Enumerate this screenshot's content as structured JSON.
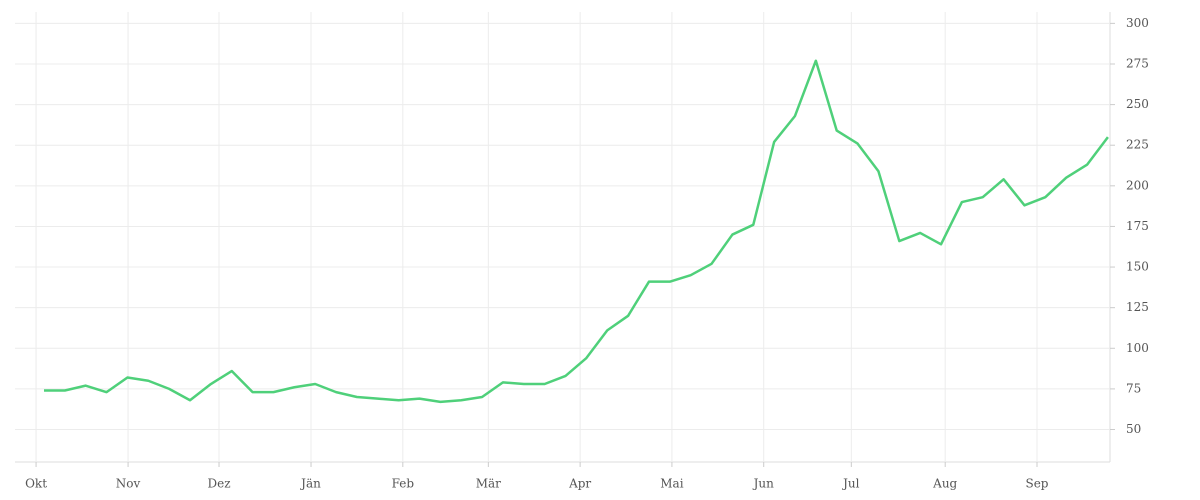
{
  "chart_data": {
    "type": "line",
    "series": [
      {
        "color": "#4fd07a",
        "values": [
          74,
          74,
          77,
          73,
          82,
          80,
          75,
          68,
          78,
          86,
          73,
          73,
          76,
          78,
          73,
          70,
          69,
          68,
          69,
          67,
          68,
          70,
          79,
          78,
          78,
          83,
          94,
          111,
          120,
          141,
          141,
          145,
          152,
          170,
          176,
          227,
          243,
          277,
          234,
          226,
          209,
          166,
          171,
          164,
          190,
          193,
          204,
          188,
          193,
          205,
          213,
          230
        ]
      }
    ],
    "xlim": [
      -1.39,
      51.1
    ],
    "xticks": [
      {
        "value": -0.38,
        "label": "Okt"
      },
      {
        "value": 4.03,
        "label": "Nov"
      },
      {
        "value": 8.39,
        "label": "Dez"
      },
      {
        "value": 12.8,
        "label": "Jän"
      },
      {
        "value": 17.2,
        "label": "Feb"
      },
      {
        "value": 21.3,
        "label": "Mär"
      },
      {
        "value": 25.7,
        "label": "Apr"
      },
      {
        "value": 30.1,
        "label": "Mai"
      },
      {
        "value": 34.5,
        "label": "Jun"
      },
      {
        "value": 38.7,
        "label": "Jul"
      },
      {
        "value": 43.2,
        "label": "Aug"
      },
      {
        "value": 47.6,
        "label": "Sep"
      }
    ],
    "ylim": [
      30,
      307
    ],
    "yticks": [
      50,
      75,
      100,
      125,
      150,
      175,
      200,
      225,
      250,
      275,
      300
    ],
    "grid": true
  }
}
